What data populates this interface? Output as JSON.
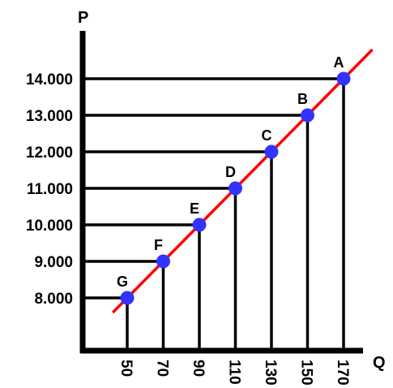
{
  "chart_data": {
    "type": "line",
    "x_axis_label": "Q",
    "y_axis_label": "P",
    "x_ticks": [
      "50",
      "70",
      "90",
      "110",
      "130",
      "150",
      "170"
    ],
    "y_ticks": [
      "8.000",
      "9.000",
      "10.000",
      "11.000",
      "12.000",
      "13.000",
      "14.000"
    ],
    "line_color": "#ff0000",
    "point_color": "#3333ff",
    "points": [
      {
        "label": "G",
        "x": 50,
        "y": 8000
      },
      {
        "label": "F",
        "x": 70,
        "y": 9000
      },
      {
        "label": "E",
        "x": 90,
        "y": 10000
      },
      {
        "label": "D",
        "x": 110,
        "y": 11000
      },
      {
        "label": "C",
        "x": 130,
        "y": 12000
      },
      {
        "label": "B",
        "x": 150,
        "y": 13000
      },
      {
        "label": "A",
        "x": 170,
        "y": 14000
      }
    ]
  }
}
